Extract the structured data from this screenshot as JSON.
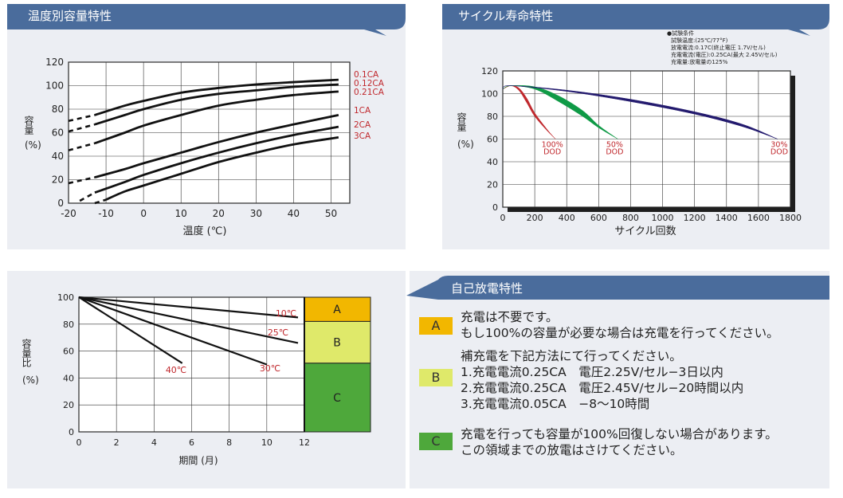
{
  "panels": {
    "temp": {
      "title": "温度別容量特性"
    },
    "cycle": {
      "title": "サイクル寿命特性",
      "conditions": [
        "●試験条件",
        "試験温度:(25℃/77°F)",
        "放電電流:0.17C(終止電圧 1.7V/セル)",
        "充電電流(電圧):0.25CA(最大 2.45V/セル)",
        "充電量:放電量の125%"
      ]
    },
    "self": {
      "title": "自己放電特性"
    }
  },
  "colors": {
    "header": "#4a6c9c",
    "panel": "#eceef3",
    "zoneA": "#f2b700",
    "zoneB": "#dfe96a",
    "zoneC": "#4ea83b",
    "red": "#c0282d",
    "green": "#0f9a46",
    "navy": "#231a6e"
  },
  "legend": [
    {
      "key": "A",
      "color": "#f2b700",
      "lines": [
        "充電は不要です。",
        "もし100%の容量が必要な場合は充電を行ってください。"
      ]
    },
    {
      "key": "B",
      "color": "#dfe96a",
      "lines": [
        "補充電を下記方法にて行ってください。",
        "1.充電電流0.25CA　電圧2.25V/セル−3日以内",
        "2.充電電流0.25CA　電圧2.45V/セル−20時間以内",
        "3.充電電流0.05CA　−8〜10時間"
      ]
    },
    {
      "key": "C",
      "color": "#4ea83b",
      "lines": [
        "充電を行っても容量が100%回復しない場合があります。",
        "この領域までの放電はさけてください。"
      ]
    }
  ],
  "chart_data": [
    {
      "type": "line",
      "title": "温度別容量特性",
      "xlabel": "温度 (℃)",
      "ylabel": "容量 (%)",
      "xlim": [
        -20,
        55
      ],
      "ylim": [
        0,
        120
      ],
      "xticks": [
        "-20",
        "-10",
        "0",
        "10",
        "20",
        "30",
        "40",
        "50"
      ],
      "yticks": [
        "0",
        "20",
        "40",
        "60",
        "80",
        "100",
        "120"
      ],
      "grid": true,
      "series": [
        {
          "name": "0.1CA",
          "x": [
            -20,
            -13,
            -5,
            0,
            10,
            20,
            30,
            40,
            52
          ],
          "y": [
            70,
            75,
            83,
            87,
            94,
            98,
            101,
            103,
            105
          ]
        },
        {
          "name": "0.12CA",
          "x": [
            -20,
            -13,
            -5,
            0,
            10,
            20,
            30,
            40,
            52
          ],
          "y": [
            61,
            67,
            75,
            80,
            88,
            93,
            96,
            99,
            101
          ]
        },
        {
          "name": "0.21CA",
          "x": [
            -20,
            -13,
            -5,
            0,
            10,
            20,
            30,
            40,
            52
          ],
          "y": [
            45,
            51,
            60,
            66,
            75,
            83,
            88,
            92,
            95
          ]
        },
        {
          "name": "1CA",
          "x": [
            -20,
            -13,
            -5,
            0,
            10,
            20,
            30,
            40,
            52
          ],
          "y": [
            17,
            22,
            29,
            34,
            43,
            52,
            60,
            67,
            75
          ]
        },
        {
          "name": "2CA",
          "x": [
            -17,
            -13,
            -5,
            0,
            10,
            20,
            30,
            40,
            52
          ],
          "y": [
            2,
            9,
            18,
            24,
            34,
            43,
            51,
            58,
            65
          ]
        },
        {
          "name": "3CA",
          "x": [
            -13,
            -10,
            -5,
            0,
            10,
            20,
            30,
            40,
            52
          ],
          "y": [
            0,
            3,
            10,
            15,
            25,
            35,
            43,
            50,
            56
          ]
        }
      ]
    },
    {
      "type": "area",
      "title": "サイクル寿命特性",
      "xlabel": "サイクル回数",
      "ylabel": "容量 (%)",
      "xlim": [
        0,
        1800
      ],
      "ylim": [
        0,
        120
      ],
      "xticks": [
        "0",
        "200",
        "400",
        "600",
        "800",
        "1000",
        "1200",
        "1400",
        "1600",
        "1800"
      ],
      "yticks": [
        "0",
        "20",
        "40",
        "60",
        "80",
        "100",
        "120"
      ],
      "grid": true,
      "series": [
        {
          "name": "100% DOD",
          "x": [
            0,
            50,
            100,
            150,
            200,
            280,
            330
          ],
          "upper": [
            104,
            107,
            105,
            96,
            83,
            68,
            60
          ],
          "lower": [
            104,
            107,
            103,
            92,
            80,
            67,
            60
          ]
        },
        {
          "name": "50% DOD",
          "x": [
            0,
            50,
            200,
            350,
            500,
            600,
            720
          ],
          "upper": [
            104,
            107,
            106,
            98,
            85,
            72,
            60
          ],
          "lower": [
            104,
            107,
            104,
            93,
            80,
            70,
            60
          ]
        },
        {
          "name": "30% DOD",
          "x": [
            0,
            50,
            400,
            800,
            1200,
            1500,
            1720
          ],
          "upper": [
            104,
            107,
            103,
            95,
            84,
            73,
            60
          ],
          "lower": [
            104,
            107,
            102,
            93,
            82,
            71,
            60
          ]
        }
      ]
    },
    {
      "type": "line",
      "title": "自己放電特性",
      "xlabel": "期間 (月)",
      "ylabel": "容量比 (%)",
      "xlim": [
        0,
        12
      ],
      "ylim": [
        0,
        100
      ],
      "xticks": [
        "0",
        "2",
        "4",
        "6",
        "8",
        "10",
        "12"
      ],
      "yticks": [
        "0",
        "20",
        "40",
        "60",
        "80",
        "100"
      ],
      "grid": true,
      "zones": [
        {
          "label": "A",
          "from": 82,
          "to": 100
        },
        {
          "label": "B",
          "from": 51,
          "to": 82
        },
        {
          "label": "C",
          "from": 0,
          "to": 51
        }
      ],
      "series": [
        {
          "name": "10℃",
          "x": [
            0,
            12
          ],
          "y": [
            100,
            85
          ]
        },
        {
          "name": "25℃",
          "x": [
            0,
            12
          ],
          "y": [
            100,
            66
          ]
        },
        {
          "name": "30℃",
          "x": [
            0,
            10
          ],
          "y": [
            100,
            50
          ]
        },
        {
          "name": "40℃",
          "x": [
            0,
            5.5
          ],
          "y": [
            100,
            51
          ]
        }
      ]
    }
  ]
}
